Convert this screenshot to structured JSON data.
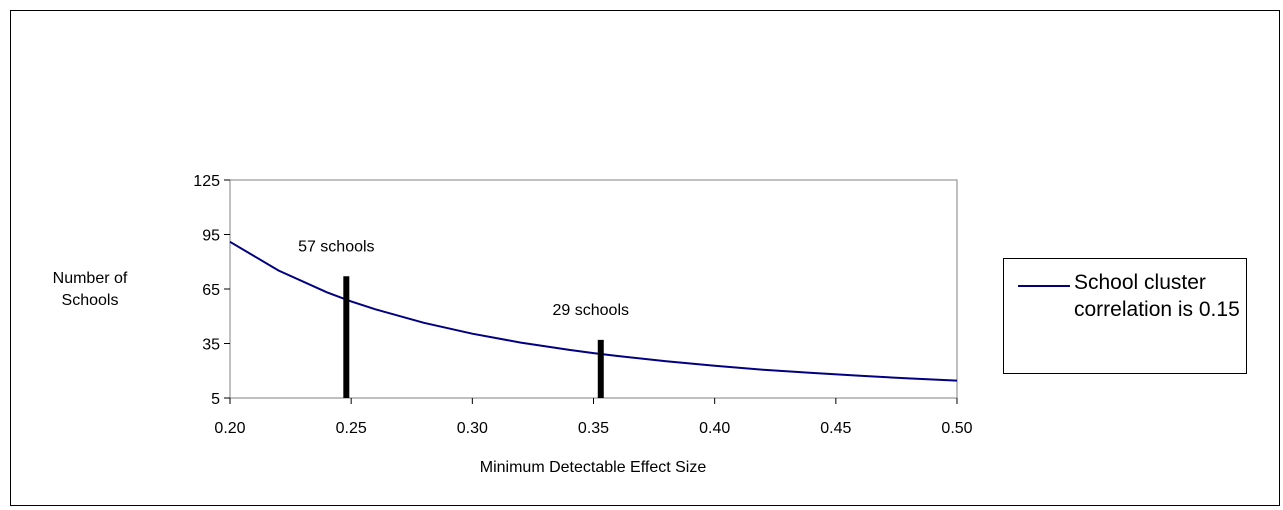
{
  "chart_data": {
    "type": "line",
    "title": "",
    "xlabel": "Minimum Detectable Effect Size",
    "ylabel": "Number of Schools",
    "xlim": [
      0.2,
      0.5
    ],
    "ylim": [
      5,
      125
    ],
    "x_ticks": [
      "0.20",
      "0.25",
      "0.30",
      "0.35",
      "0.40",
      "0.45",
      "0.50"
    ],
    "y_ticks": [
      "5",
      "35",
      "65",
      "95",
      "125"
    ],
    "grid": false,
    "legend_position": "right",
    "series": [
      {
        "name": "School cluster correlation is 0.15",
        "color": "#000080",
        "x": [
          0.2,
          0.22,
          0.24,
          0.25,
          0.26,
          0.28,
          0.3,
          0.32,
          0.34,
          0.35,
          0.36,
          0.38,
          0.4,
          0.42,
          0.44,
          0.46,
          0.48,
          0.5
        ],
        "y": [
          91,
          75.2,
          63.2,
          58.2,
          53.8,
          46.4,
          40.4,
          35.5,
          31.5,
          29.7,
          28.1,
          25.2,
          22.8,
          20.6,
          18.8,
          17.2,
          15.8,
          14.6
        ]
      }
    ],
    "markers": [
      {
        "label": "57 schools",
        "x": 0.248,
        "y_top": 72,
        "color": "#000000"
      },
      {
        "label": "29 schools",
        "x": 0.353,
        "y_top": 37,
        "color": "#000000"
      }
    ]
  }
}
